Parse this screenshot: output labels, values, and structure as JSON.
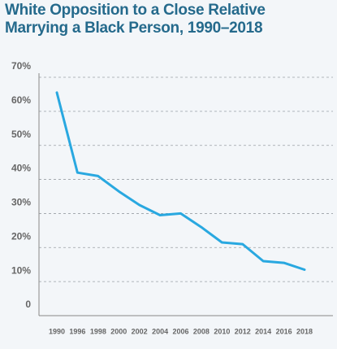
{
  "chart_data": {
    "type": "line",
    "title": "White Opposition to a Close Relative Marrying a Black Person, 1990–2018",
    "categories": [
      "1990",
      "1996",
      "1998",
      "2000",
      "2002",
      "2004",
      "2006",
      "2008",
      "2010",
      "2012",
      "2014",
      "2016",
      "2018"
    ],
    "series": [
      {
        "name": "White opposition",
        "color": "#29a8e0",
        "values": [
          65.5,
          42,
          41,
          36.5,
          32.5,
          29.5,
          30,
          26,
          21.5,
          21,
          16,
          15.5,
          13.5
        ]
      }
    ],
    "ylim": [
      0,
      70
    ],
    "yticks": [
      0,
      {
        "value": 10,
        "label": "10%"
      },
      {
        "value": 20,
        "label": "20%"
      },
      {
        "value": 30,
        "label": "30%"
      },
      {
        "value": 40,
        "label": "40%"
      },
      {
        "value": 50,
        "label": "50%"
      },
      {
        "value": 60,
        "label": "60%"
      },
      {
        "value": 70,
        "label": "70%"
      }
    ],
    "grid": true
  }
}
